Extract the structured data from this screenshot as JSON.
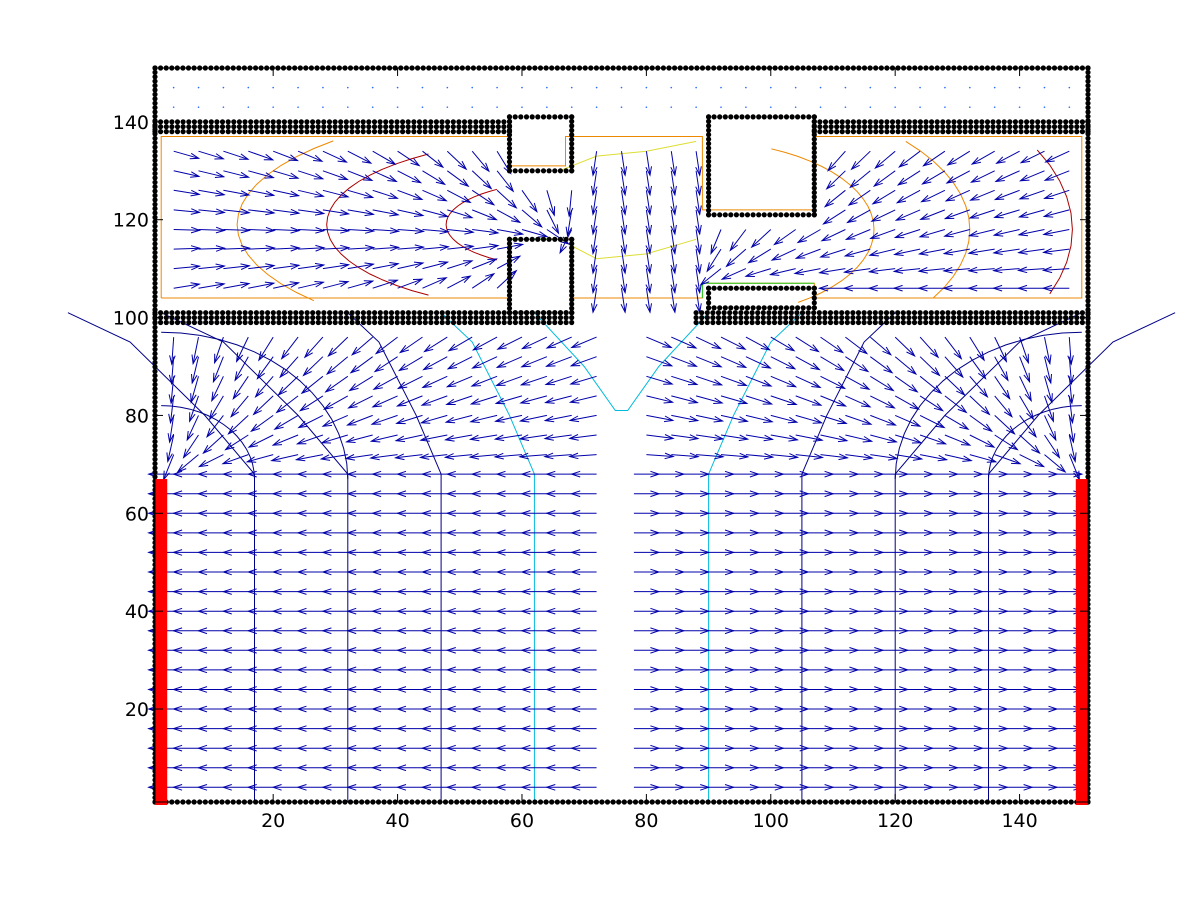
{
  "chart_data": {
    "type": "quiver",
    "title": "",
    "xlabel": "",
    "ylabel": "",
    "xlim": [
      1,
      151
    ],
    "ylim": [
      1,
      151
    ],
    "grid": false,
    "legend": "none",
    "x_ticks": [
      20,
      40,
      60,
      80,
      100,
      120,
      140
    ],
    "y_ticks": [
      20,
      40,
      60,
      80,
      100,
      120,
      140
    ],
    "x_tick_labels": [
      "20",
      "40",
      "60",
      "80",
      "100",
      "120",
      "140"
    ],
    "y_tick_labels": [
      "20",
      "40",
      "60",
      "80",
      "100",
      "120",
      "140"
    ],
    "colors": {
      "arrows": "#0000aa",
      "walls": "#000000",
      "exits": "#ff0000",
      "contour_blue": "#000088",
      "contour_cyan": "#00bbdd",
      "contour_yellow": "#dddd33",
      "contour_orange": "#ee8800",
      "contour_red": "#aa0000",
      "contour_green": "#22cc22",
      "free_dots": "#2a6aff"
    },
    "walls": [
      {
        "name": "outer-bottom",
        "x": [
          1,
          151
        ],
        "y": [
          1,
          1
        ]
      },
      {
        "name": "outer-top",
        "x": [
          1,
          151
        ],
        "y": [
          151,
          151
        ]
      },
      {
        "name": "outer-left",
        "x": [
          1,
          1
        ],
        "y": [
          1,
          151
        ]
      },
      {
        "name": "outer-right",
        "x": [
          151,
          151
        ],
        "y": [
          1,
          151
        ]
      },
      {
        "name": "corridor-top-left",
        "x": [
          1,
          58
        ],
        "y": [
          138,
          138
        ]
      },
      {
        "name": "corridor-top-right",
        "x": [
          107,
          151
        ],
        "y": [
          138,
          138
        ]
      },
      {
        "name": "corridor-bottom-left",
        "x": [
          1,
          68
        ],
        "y": [
          101,
          101
        ]
      },
      {
        "name": "corridor-bottom-right",
        "x": [
          88,
          151
        ],
        "y": [
          101,
          101
        ]
      }
    ],
    "blocks": [
      {
        "name": "room-a",
        "x": [
          58,
          68
        ],
        "y": [
          130,
          141
        ]
      },
      {
        "name": "room-b",
        "x": [
          58,
          68
        ],
        "y": [
          101,
          116
        ]
      },
      {
        "name": "room-c",
        "x": [
          90,
          107
        ],
        "y": [
          121,
          141
        ]
      },
      {
        "name": "room-d",
        "x": [
          90,
          107
        ],
        "y": [
          102,
          106
        ]
      }
    ],
    "exits": [
      {
        "name": "exit-left",
        "x": 2,
        "y": [
          1,
          67
        ]
      },
      {
        "name": "exit-right",
        "x": 150,
        "y": [
          1,
          67
        ]
      }
    ],
    "quiver": {
      "lower_zone": {
        "x": [
          4,
          74
        ],
        "y": [
          4,
          68
        ],
        "dx": 4,
        "dy": 4,
        "direction": "left"
      },
      "lower_zone_right": {
        "x": [
          78,
          148
        ],
        "y": [
          4,
          68
        ],
        "dx": 4,
        "dy": 4,
        "direction": "right"
      },
      "middle_zone": {
        "y": [
          70,
          98
        ],
        "sinks": [
          [
            2,
            67
          ],
          [
            150,
            67
          ]
        ],
        "divide_x": 76
      },
      "corridor_zone": {
        "y": [
          104,
          136
        ],
        "sinks": [
          [
            67,
            116
          ],
          [
            87,
            106
          ]
        ],
        "divide_x": 76
      }
    }
  }
}
